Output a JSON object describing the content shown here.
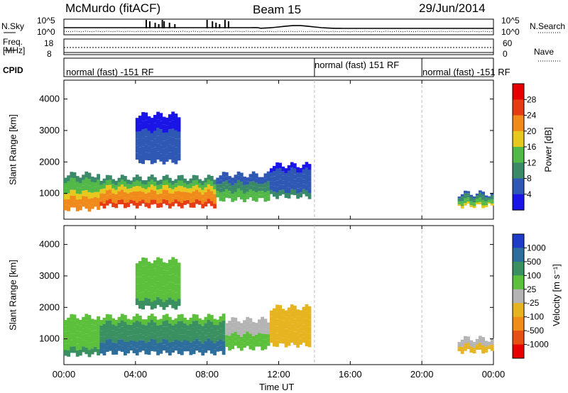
{
  "header": {
    "station": "McMurdo (fitACF)",
    "beam": "Beam 15",
    "date": "29/Jun/2014"
  },
  "top_panels": {
    "nsky_label": "N.Sky",
    "nsearch_label": "N.Search",
    "noise_ticks": [
      "10^5",
      "10^0"
    ],
    "freq_label_top": "Freq.",
    "freq_label_unit": "[MHz]",
    "freq_ticks": [
      "18",
      "8"
    ],
    "nave_label": "Nave",
    "nave_ticks": [
      "60",
      "0"
    ],
    "cpid_label": "CPID",
    "cpid_segments": [
      {
        "label": "normal (fast) -151 RF",
        "start_hour": 0,
        "end_hour": 14
      },
      {
        "label": "normal (fast) 151 RF",
        "start_hour": 14,
        "end_hour": 20
      },
      {
        "label": "normal (fast) -151 RF",
        "start_hour": 20,
        "end_hour": 24
      }
    ]
  },
  "axes": {
    "xlabel": "Time UT",
    "ylabel": "Slant Range [km]",
    "x_ticks": [
      "00:00",
      "04:00",
      "08:00",
      "12:00",
      "16:00",
      "20:00",
      "00:00"
    ],
    "y_ticks": [
      "1000",
      "2000",
      "3000",
      "4000"
    ]
  },
  "power_colorbar": {
    "label": "Power [dB]",
    "ticks": [
      "4",
      "8",
      "12",
      "16",
      "20",
      "24",
      "28"
    ],
    "colors": [
      "#1a14e6",
      "#2e58b4",
      "#3a8a6a",
      "#52b848",
      "#e6c81e",
      "#f08a1a",
      "#e63c14",
      "#e60000"
    ]
  },
  "velocity_colorbar": {
    "label": "Velocity [m s⁻¹]",
    "ticks": [
      "1000",
      "500",
      "100",
      "25",
      "-25",
      "-100",
      "-500",
      "-1000"
    ],
    "colors": [
      "#1e3cc8",
      "#2e6e9c",
      "#3a9060",
      "#5cc03c",
      "#b4b4b4",
      "#e6b420",
      "#f08c1a",
      "#e65014",
      "#e60000"
    ]
  },
  "chart_data": [
    {
      "type": "heatmap",
      "title": "Power",
      "xlabel": "Time UT",
      "ylabel": "Slant Range [km]",
      "xlim": [
        0,
        24
      ],
      "ylim": [
        180,
        4600
      ],
      "colorbar": {
        "label": "Power [dB]",
        "range": [
          0,
          30
        ]
      },
      "series": [
        {
          "t0": 0,
          "t1": 2,
          "r0": 500,
          "r1": 1600,
          "value": 22
        },
        {
          "t0": 2,
          "t1": 8.5,
          "r0": 600,
          "r1": 1500,
          "value": 25
        },
        {
          "t0": 8.5,
          "t1": 11.5,
          "r0": 800,
          "r1": 1600,
          "value": 14
        },
        {
          "t0": 11.5,
          "t1": 13.8,
          "r0": 900,
          "r1": 1900,
          "value": 8
        },
        {
          "t0": 4,
          "t1": 6.5,
          "r0": 2000,
          "r1": 3500,
          "value": 6
        },
        {
          "t0": 22,
          "t1": 24,
          "r0": 600,
          "r1": 1000,
          "value": 16
        }
      ]
    },
    {
      "type": "heatmap",
      "title": "Velocity",
      "xlabel": "Time UT",
      "ylabel": "Slant Range [km]",
      "xlim": [
        0,
        24
      ],
      "ylim": [
        180,
        4600
      ],
      "colorbar": {
        "label": "Velocity [m s⁻¹]",
        "range": [
          -1000,
          1000
        ]
      },
      "series": [
        {
          "t0": 0,
          "t1": 2,
          "r0": 500,
          "r1": 1700,
          "value": 100
        },
        {
          "t0": 2,
          "t1": 9,
          "r0": 550,
          "r1": 1700,
          "value": 200
        },
        {
          "t0": 9,
          "t1": 11.5,
          "r0": 700,
          "r1": 1600,
          "value": 50
        },
        {
          "t0": 11.5,
          "t1": 13.8,
          "r0": 800,
          "r1": 2000,
          "value": -100
        },
        {
          "t0": 4,
          "t1": 6.5,
          "r0": 2000,
          "r1": 3500,
          "value": 100
        },
        {
          "t0": 22,
          "t1": 24,
          "r0": 600,
          "r1": 1000,
          "value": -50
        }
      ]
    }
  ]
}
